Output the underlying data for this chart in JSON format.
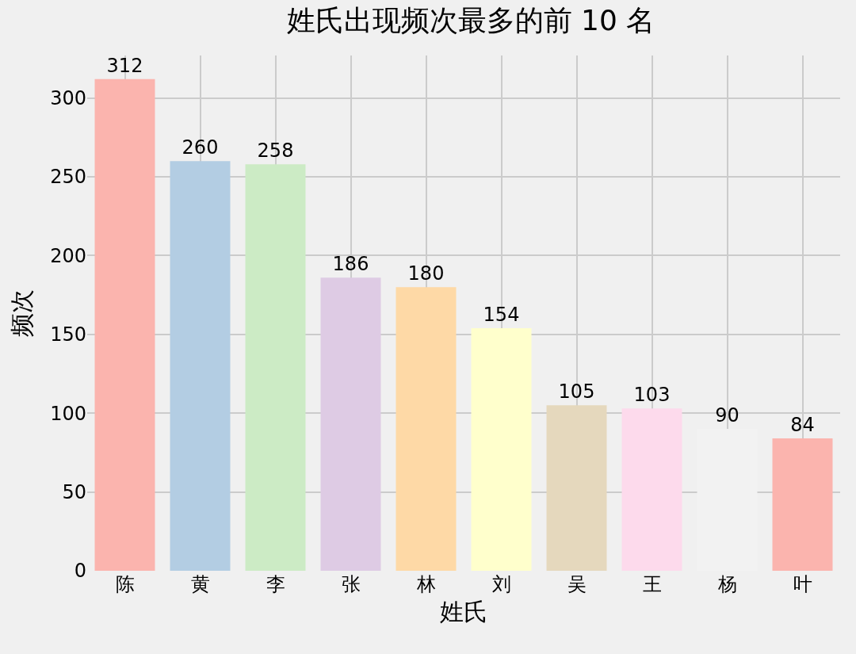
{
  "chart_data": {
    "type": "bar",
    "title": "姓氏出现频次最多的前 10 名",
    "xlabel": "姓氏",
    "ylabel": "频次",
    "categories": [
      "陈",
      "黄",
      "李",
      "张",
      "林",
      "刘",
      "吴",
      "王",
      "杨",
      "叶"
    ],
    "values": [
      312,
      260,
      258,
      186,
      180,
      154,
      105,
      103,
      90,
      84
    ],
    "colors": [
      "#fbb4ae",
      "#b3cde3",
      "#ccebc5",
      "#decbe4",
      "#fed9a6",
      "#ffffcc",
      "#e5d8bd",
      "#fddaec",
      "#f2f2f2",
      "#fbb4ae"
    ],
    "ylim": [
      0,
      327
    ],
    "yticks": [
      0,
      50,
      100,
      150,
      200,
      250,
      300
    ],
    "grid": true,
    "data_labels": true
  }
}
